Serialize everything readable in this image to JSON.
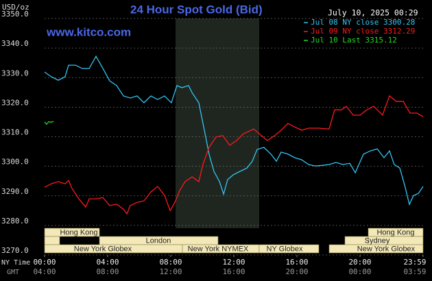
{
  "chart_data": {
    "type": "line",
    "title": "24 Hour Spot Gold (Bid)",
    "y_label": "USD/oz",
    "source": "www.kitco.com",
    "timestamp": "July 10, 2025 00:29",
    "x_row_labels": [
      "NY Time",
      "GMT"
    ],
    "xlim": [
      0,
      24
    ],
    "ylim": [
      3270,
      3350
    ],
    "yticks": [
      {
        "value": 3270,
        "label": "3270.0"
      },
      {
        "value": 3280,
        "label": "3280.0"
      },
      {
        "value": 3290,
        "label": "3290.0"
      },
      {
        "value": 3300,
        "label": "3300.0"
      },
      {
        "value": 3310,
        "label": "3310.0"
      },
      {
        "value": 3320,
        "label": "3320.0"
      },
      {
        "value": 3330,
        "label": "3330.0"
      },
      {
        "value": 3340,
        "label": "3340.0"
      },
      {
        "value": 3350,
        "label": "3350.0"
      }
    ],
    "xticks": [
      {
        "value": 0,
        "label": "00:00"
      },
      {
        "value": 4,
        "label": "04:00"
      },
      {
        "value": 8,
        "label": "08:00"
      },
      {
        "value": 12,
        "label": "12:00"
      },
      {
        "value": 16,
        "label": "16:00"
      },
      {
        "value": 20,
        "label": "20:00"
      },
      {
        "value": 24,
        "label": "23:59"
      }
    ],
    "xticks_gmt": [
      {
        "value": 0,
        "label": "04:00"
      },
      {
        "value": 4,
        "label": "08:00"
      },
      {
        "value": 8,
        "label": "12:00"
      },
      {
        "value": 12,
        "label": "16:00"
      },
      {
        "value": 16,
        "label": "20:00"
      },
      {
        "value": 20,
        "label": "00:00"
      },
      {
        "value": 24,
        "label": "03:59"
      }
    ],
    "grid": true,
    "sessions": [
      "Hong Kong",
      "London",
      "New York Globex",
      "New York NYMEX",
      "NY Globex",
      "Hong Kong",
      "Sydney",
      "New York Globex"
    ],
    "series": [
      {
        "name": "Jul 08 NY close 3300.28",
        "color": "#33c6f4",
        "x": [
          0,
          0.43,
          0.87,
          1.3,
          1.52,
          1.96,
          2.39,
          2.83,
          3.26,
          3.7,
          4.13,
          4.57,
          5.0,
          5.43,
          5.87,
          6.3,
          6.74,
          7.17,
          7.61,
          8.04,
          8.39,
          8.7,
          9.13,
          9.35,
          9.78,
          10.13,
          10.43,
          10.74,
          11.09,
          11.35,
          11.61,
          11.96,
          12.39,
          12.83,
          13.17,
          13.48,
          13.91,
          14.35,
          14.7,
          15.0,
          15.43,
          15.87,
          16.3,
          16.74,
          17.17,
          17.61,
          18.04,
          18.48,
          18.91,
          19.35,
          19.7,
          20.22,
          20.65,
          21.09,
          21.52,
          21.87,
          22.17,
          22.52,
          22.83,
          23.13,
          23.39,
          23.7,
          24.0
        ],
        "values": [
          3331.9,
          3330.3,
          3329.1,
          3330.3,
          3334.2,
          3334.2,
          3333.1,
          3333.1,
          3337.2,
          3333.1,
          3328.9,
          3327.3,
          3323.8,
          3323.1,
          3323.8,
          3321.5,
          3323.8,
          3322.6,
          3323.8,
          3321.5,
          3327.3,
          3326.6,
          3327.3,
          3324.9,
          3321.5,
          3312.2,
          3304.1,
          3298.3,
          3294.8,
          3290.6,
          3295.5,
          3297.1,
          3298.3,
          3299.4,
          3301.7,
          3305.7,
          3306.4,
          3304.1,
          3301.7,
          3304.8,
          3304.1,
          3302.9,
          3302.2,
          3300.6,
          3300.1,
          3300.3,
          3300.6,
          3301.3,
          3300.6,
          3301.0,
          3297.8,
          3304.1,
          3305.2,
          3305.9,
          3302.9,
          3305.2,
          3300.6,
          3299.4,
          3293.6,
          3287.1,
          3290.1,
          3290.8,
          3293.2
        ]
      },
      {
        "name": "Jul 09 NY close 3312.29",
        "color": "#ff1a1a",
        "x": [
          0,
          0.43,
          0.87,
          1.3,
          1.52,
          1.74,
          2.17,
          2.61,
          2.83,
          3.26,
          3.7,
          4.13,
          4.57,
          5.0,
          5.22,
          5.43,
          5.87,
          6.3,
          6.74,
          7.17,
          7.61,
          7.96,
          8.26,
          8.57,
          8.91,
          9.35,
          9.78,
          10.04,
          10.43,
          10.87,
          11.3,
          11.74,
          12.17,
          12.61,
          13.26,
          13.7,
          14.13,
          14.57,
          15.0,
          15.43,
          15.87,
          16.3,
          16.74,
          17.39,
          18.04,
          18.39,
          18.83,
          19.13,
          19.57,
          20.0,
          20.43,
          20.87,
          21.43,
          21.87,
          22.3,
          22.74,
          23.17,
          23.61,
          24.0
        ],
        "values": [
          3292.9,
          3294.1,
          3294.8,
          3294.1,
          3295.2,
          3292.5,
          3289.0,
          3286.2,
          3289.0,
          3289.0,
          3289.4,
          3286.7,
          3287.2,
          3285.5,
          3283.9,
          3286.7,
          3287.8,
          3288.3,
          3291.3,
          3293.2,
          3290.1,
          3285.0,
          3287.8,
          3291.8,
          3294.8,
          3296.4,
          3294.8,
          3300.6,
          3306.4,
          3309.9,
          3310.4,
          3307.1,
          3308.7,
          3311.0,
          3312.6,
          3310.6,
          3308.7,
          3310.3,
          3312.2,
          3314.5,
          3313.3,
          3312.2,
          3312.9,
          3312.9,
          3312.6,
          3319.1,
          3319.1,
          3320.3,
          3317.3,
          3317.3,
          3319.1,
          3320.3,
          3317.3,
          3323.8,
          3322.0,
          3322.0,
          3318.0,
          3318.0,
          3316.8
        ]
      },
      {
        "name": "Jul 10 Last 3315.12",
        "color": "#22dd22",
        "x": [
          0,
          0.13,
          0.26,
          0.39,
          0.57
        ],
        "values": [
          3315.0,
          3314.2,
          3315.1,
          3314.9,
          3315.2
        ]
      }
    ]
  }
}
